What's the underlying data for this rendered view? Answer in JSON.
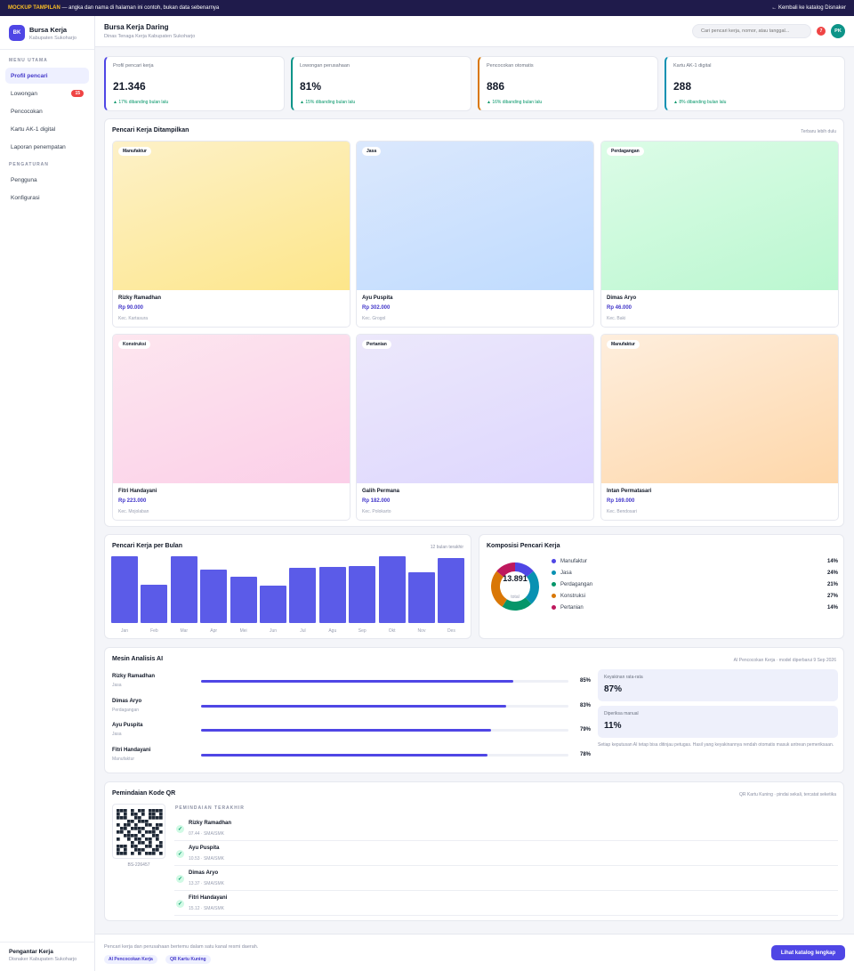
{
  "banner": {
    "label": "MOCKUP TAMPILAN",
    "text": " — angka dan nama di halaman ini contoh, bukan data sebenarnya",
    "back_link": "← Kembali ke katalog Disnaker"
  },
  "sidebar": {
    "logo_initials": "BK",
    "app_name": "Bursa Kerja",
    "app_sub": "Kabupaten Sukoharjo",
    "section_main": "MENU UTAMA",
    "items": [
      {
        "label": "Profil pencari"
      },
      {
        "label": "Lowongan",
        "badge": "15"
      },
      {
        "label": "Pencocokan"
      },
      {
        "label": "Kartu AK-1 digital"
      },
      {
        "label": "Laporan penempatan"
      }
    ],
    "section_settings": "PENGATURAN",
    "settings_items": [
      {
        "label": "Pengguna"
      },
      {
        "label": "Konfigurasi"
      }
    ],
    "footer_title": "Pengantar Kerja",
    "footer_sub": "Disnaker Kabupaten Sukoharjo"
  },
  "header": {
    "title": "Bursa Kerja Daring",
    "subtitle": "Dinas Tenaga Kerja Kabupaten Sukoharjo",
    "search_placeholder": "Cari pencari kerja, nomor, atau tanggal...",
    "notif_count": "7",
    "avatar_initials": "PK"
  },
  "stats": [
    {
      "label": "Profil pencari kerja",
      "value": "21.346",
      "change": "▲ 17% dibanding bulan lalu",
      "color": "#4f46e5"
    },
    {
      "label": "Lowongan perusahaan",
      "value": "81%",
      "change": "▲ 15% dibanding bulan lalu",
      "color": "#0d9488"
    },
    {
      "label": "Pencocokan otomatis",
      "value": "886",
      "change": "▲ 16% dibanding bulan lalu",
      "color": "#d97706"
    },
    {
      "label": "Kartu AK-1 digital",
      "value": "288",
      "change": "▲ 8% dibanding bulan lalu",
      "color": "#0891b2"
    }
  ],
  "featured": {
    "title": "Pencari Kerja Ditampilkan",
    "meta": "Terbaru lebih dulu",
    "items": [
      {
        "tag": "Manufaktur",
        "name": "Rizky Ramadhan",
        "price": "Rp 90.000",
        "location": "Kec. Kartasura",
        "gradient": [
          "#fdf1c8",
          "#fde68a"
        ]
      },
      {
        "tag": "Jasa",
        "name": "Ayu Puspita",
        "price": "Rp 302.000",
        "location": "Kec. Grogol",
        "gradient": [
          "#dbe8fd",
          "#bfdbfe"
        ]
      },
      {
        "tag": "Perdagangan",
        "name": "Dimas Aryo",
        "price": "Rp 46.000",
        "location": "Kec. Baki",
        "gradient": [
          "#dcfce7",
          "#bbf7d0"
        ]
      },
      {
        "tag": "Konstruksi",
        "name": "Fitri Handayani",
        "price": "Rp 223.000",
        "location": "Kec. Mojolaban",
        "gradient": [
          "#fde6ef",
          "#fbcfe8"
        ]
      },
      {
        "tag": "Pertanian",
        "name": "Galih Permana",
        "price": "Rp 182.000",
        "location": "Kec. Polokarto",
        "gradient": [
          "#ece8fb",
          "#ddd6fe"
        ]
      },
      {
        "tag": "Manufaktur",
        "name": "Intan Permatasari",
        "price": "Rp 169.000",
        "location": "Kec. Bendosari",
        "gradient": [
          "#feeedd",
          "#fed7aa"
        ]
      }
    ]
  },
  "monthly": {
    "title": "Pencari Kerja per Bulan",
    "meta": "12 bulan terakhir"
  },
  "composition": {
    "title": "Komposisi Pencari Kerja",
    "total": "13.891",
    "total_label": "total"
  },
  "chart_data": [
    {
      "type": "bar",
      "categories": [
        "Jan",
        "Feb",
        "Mar",
        "Apr",
        "Mei",
        "Jun",
        "Jul",
        "Agu",
        "Sep",
        "Okt",
        "Nov",
        "Des"
      ],
      "values": [
        100,
        57,
        100,
        80,
        70,
        56,
        83,
        84,
        86,
        100,
        76,
        97
      ],
      "title": "Pencari Kerja per Bulan",
      "ylim": [
        0,
        100
      ]
    },
    {
      "type": "pie",
      "categories": [
        "Manufaktur",
        "Jasa",
        "Perdagangan",
        "Konstruksi",
        "Pertanian"
      ],
      "values": [
        14,
        24,
        21,
        27,
        14
      ],
      "colors": [
        "#4f46e5",
        "#0891b2",
        "#059669",
        "#d97706",
        "#be185d"
      ],
      "labels": [
        "14%",
        "24%",
        "21%",
        "27%",
        "14%"
      ],
      "title": "Komposisi Pencari Kerja"
    }
  ],
  "ai": {
    "title": "Mesin Analisis AI",
    "meta": "AI Pencocokan Kerja · model diperbarui 9 Sep 2026",
    "rows": [
      {
        "name": "Rizky Ramadhan",
        "category": "Jasa",
        "pct_label": "85%",
        "value": 0.85
      },
      {
        "name": "Dimas Aryo",
        "category": "Perdagangan",
        "pct_label": "83%",
        "value": 0.83
      },
      {
        "name": "Ayu Puspita",
        "category": "Jasa",
        "pct_label": "79%",
        "value": 0.79
      },
      {
        "name": "Fitri Handayani",
        "category": "Manufaktur",
        "pct_label": "78%",
        "value": 0.78
      }
    ],
    "kpi_confidence_label": "Keyakinan rata-rata",
    "kpi_confidence_value": "87%",
    "kpi_manual_label": "Diperiksa manual",
    "kpi_manual_value": "11%",
    "note": "Setiap keputusan AI tetap bisa ditinjau petugas. Hasil yang keyakinannya rendah otomatis masuk antrean pemeriksaan."
  },
  "qr": {
    "title": "Pemindaian Kode QR",
    "meta": "QR Kartu Kuning · pindai sekali, tercatat seketika",
    "code": "BS-226457",
    "recent_label": "PEMINDAIAN TERAKHIR",
    "scans": [
      {
        "name": "Rizky Ramadhan",
        "time": "07.44 · SMA/SMK"
      },
      {
        "name": "Ayu Puspita",
        "time": "10.53 · SMA/SMK"
      },
      {
        "name": "Dimas Aryo",
        "time": "13.37 · SMA/SMK"
      },
      {
        "name": "Fitri Handayani",
        "time": "15.12 · SMA/SMK"
      }
    ]
  },
  "footer": {
    "text": "Pencari kerja dan perusahaan bertemu dalam satu kanal resmi daerah.",
    "pills": [
      "AI Pencocokan Kerja",
      "QR Kartu Kuning"
    ],
    "cta": "Lihat katalog lengkap"
  }
}
